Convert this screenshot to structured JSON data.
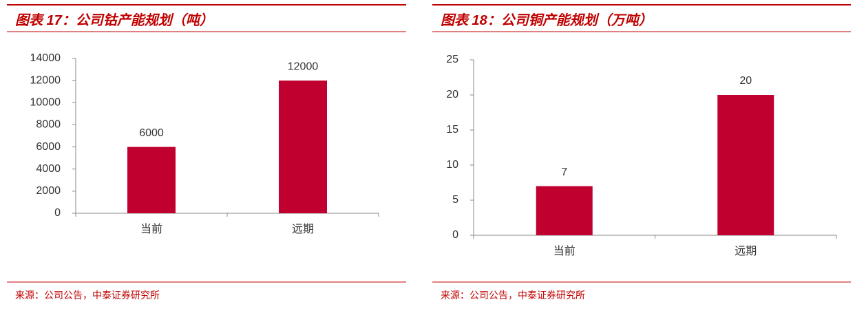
{
  "chart_data": [
    {
      "type": "bar",
      "title": "图表 17：公司钴产能规划（吨）",
      "source": "来源：公司公告，中泰证券研究所",
      "categories": [
        "当前",
        "远期"
      ],
      "values": [
        6000,
        12000
      ],
      "color": "#c0002f",
      "ylim": [
        0,
        14000
      ],
      "yticks": [
        0,
        2000,
        4000,
        6000,
        8000,
        10000,
        12000,
        14000
      ]
    },
    {
      "type": "bar",
      "title": "图表 18：公司铜产能规划（万吨）",
      "source": "来源：公司公告，中泰证券研究所",
      "categories": [
        "当前",
        "远期"
      ],
      "values": [
        7,
        20
      ],
      "color": "#c0002f",
      "ylim": [
        0,
        25
      ],
      "yticks": [
        0,
        5,
        10,
        15,
        20,
        25
      ]
    }
  ]
}
